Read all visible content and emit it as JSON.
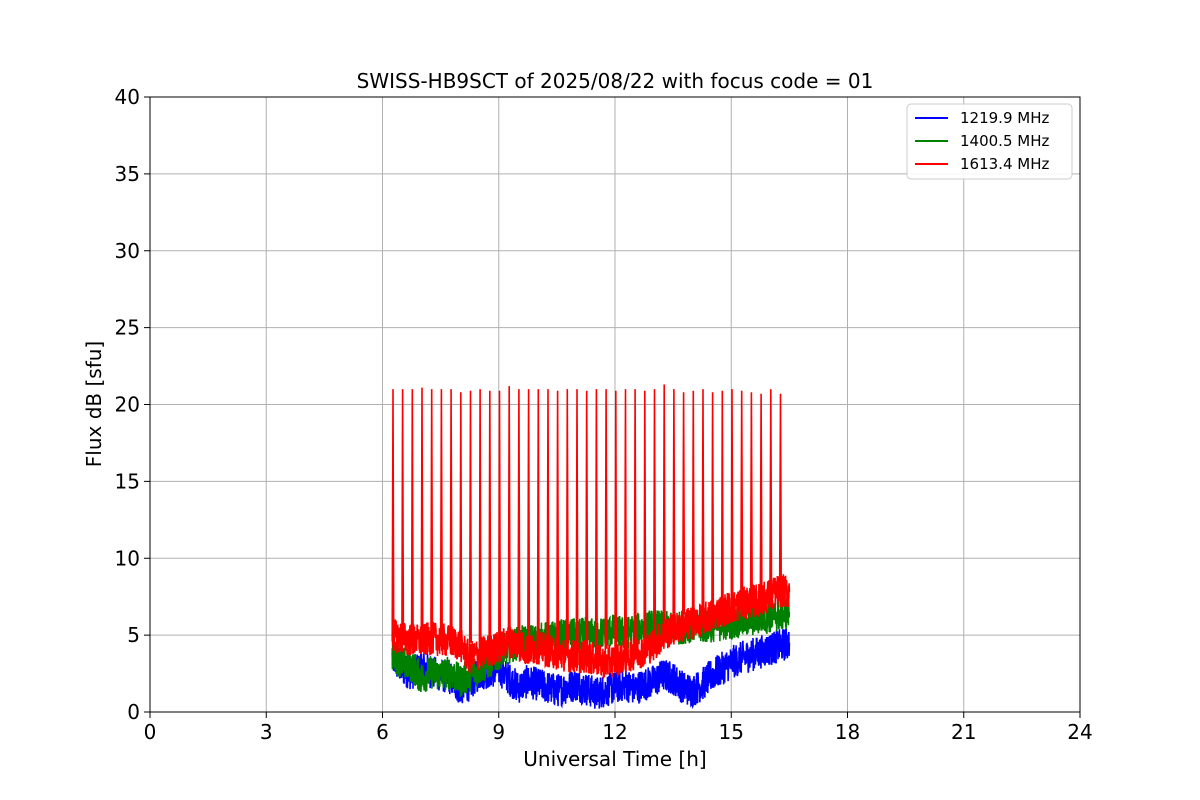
{
  "chart_data": {
    "type": "line",
    "title": "SWISS-HB9SCT of 2025/08/22 with focus code = 01",
    "xlabel": "Universal Time [h]",
    "ylabel": "Flux dB [sfu]",
    "xlim": [
      0,
      24
    ],
    "ylim": [
      0,
      40
    ],
    "x_ticks": [
      0,
      3,
      6,
      9,
      12,
      15,
      18,
      21,
      24
    ],
    "y_ticks": [
      0,
      5,
      10,
      15,
      20,
      25,
      30,
      35,
      40
    ],
    "x_tick_labels": [
      "0",
      "3",
      "6",
      "9",
      "12",
      "15",
      "18",
      "21",
      "24"
    ],
    "y_tick_labels": [
      "0",
      "5",
      "10",
      "15",
      "20",
      "25",
      "30",
      "35",
      "40"
    ],
    "grid": true,
    "legend_position": "top-right",
    "series": [
      {
        "name": "1219.9 MHz",
        "color": "#0000ff",
        "x": [
          6.25,
          6.5,
          6.75,
          7.0,
          7.25,
          7.5,
          7.75,
          8.0,
          8.25,
          8.5,
          8.75,
          9.0,
          9.25,
          9.5,
          9.75,
          10.0,
          10.25,
          10.5,
          10.75,
          11.0,
          11.25,
          11.5,
          11.75,
          12.0,
          12.25,
          12.5,
          12.75,
          13.0,
          13.25,
          13.5,
          13.75,
          14.0,
          14.25,
          14.5,
          14.75,
          15.0,
          15.25,
          15.5,
          15.75,
          16.0,
          16.25,
          16.5
        ],
        "y": [
          3.5,
          2.8,
          2.5,
          3.0,
          2.6,
          2.4,
          2.2,
          1.5,
          1.8,
          2.5,
          2.6,
          2.8,
          2.2,
          1.6,
          2.0,
          1.8,
          1.6,
          1.4,
          1.6,
          1.8,
          1.5,
          1.2,
          1.4,
          1.6,
          1.8,
          1.5,
          1.8,
          2.0,
          2.4,
          2.2,
          1.6,
          1.4,
          1.8,
          2.4,
          2.8,
          3.2,
          3.5,
          3.7,
          3.9,
          4.1,
          4.3,
          4.5
        ]
      },
      {
        "name": "1400.5 MHz",
        "color": "#008000",
        "x": [
          6.25,
          6.5,
          6.75,
          7.0,
          7.25,
          7.5,
          7.75,
          8.0,
          8.25,
          8.5,
          8.75,
          9.0,
          9.25,
          9.5,
          9.75,
          10.0,
          10.25,
          10.5,
          10.75,
          11.0,
          11.25,
          11.5,
          11.75,
          12.0,
          12.25,
          12.5,
          12.75,
          13.0,
          13.25,
          13.5,
          13.75,
          14.0,
          14.25,
          14.5,
          14.75,
          15.0,
          15.25,
          15.5,
          15.75,
          16.0,
          16.25,
          16.5
        ],
        "y": [
          3.8,
          3.2,
          3.0,
          2.2,
          2.6,
          2.4,
          2.6,
          2.0,
          2.4,
          2.8,
          3.2,
          3.8,
          4.2,
          4.5,
          4.6,
          4.7,
          4.8,
          4.9,
          5.0,
          5.0,
          5.1,
          5.0,
          5.2,
          5.3,
          5.1,
          5.3,
          5.5,
          5.6,
          5.5,
          5.4,
          5.5,
          5.6,
          5.5,
          5.6,
          5.7,
          5.8,
          5.9,
          6.0,
          6.1,
          6.2,
          6.3,
          6.5
        ]
      },
      {
        "name": "1613.4 MHz",
        "color": "#ff0000",
        "x": [
          6.25,
          6.5,
          6.75,
          7.0,
          7.25,
          7.5,
          7.75,
          8.0,
          8.25,
          8.5,
          8.75,
          9.0,
          9.25,
          9.5,
          9.75,
          10.0,
          10.25,
          10.5,
          10.75,
          11.0,
          11.25,
          11.5,
          11.75,
          12.0,
          12.25,
          12.5,
          12.75,
          13.0,
          13.25,
          13.5,
          13.75,
          14.0,
          14.25,
          14.5,
          14.75,
          15.0,
          15.25,
          15.5,
          15.75,
          16.0,
          16.25,
          16.5
        ],
        "y": [
          5.0,
          4.8,
          4.7,
          4.6,
          4.8,
          4.7,
          4.6,
          4.4,
          3.5,
          3.8,
          4.0,
          4.2,
          4.6,
          4.4,
          4.0,
          4.2,
          4.0,
          3.8,
          3.7,
          3.6,
          3.6,
          3.4,
          3.2,
          3.4,
          3.6,
          3.8,
          4.0,
          4.4,
          5.0,
          5.4,
          5.6,
          5.8,
          6.0,
          6.3,
          6.6,
          6.8,
          7.0,
          7.2,
          7.3,
          7.6,
          7.9,
          7.8
        ]
      }
    ],
    "spikes": {
      "series": "1613.4 MHz",
      "x": [
        6.25,
        6.5,
        6.75,
        7.0,
        7.25,
        7.5,
        7.75,
        8.0,
        8.25,
        8.5,
        8.75,
        9.0,
        9.25,
        9.5,
        9.75,
        10.0,
        10.25,
        10.5,
        10.75,
        11.0,
        11.25,
        11.5,
        11.75,
        12.0,
        12.25,
        12.5,
        12.75,
        13.0,
        13.25,
        13.5,
        13.75,
        14.0,
        14.25,
        14.5,
        14.75,
        15.0,
        15.25,
        15.5,
        15.75,
        16.0,
        16.25
      ],
      "y": [
        21.0,
        21.0,
        21.0,
        21.1,
        21.0,
        21.0,
        21.0,
        20.8,
        20.9,
        21.0,
        20.9,
        20.9,
        21.2,
        21.0,
        21.0,
        21.0,
        21.0,
        20.9,
        21.0,
        21.0,
        20.9,
        21.0,
        21.0,
        20.9,
        21.0,
        21.0,
        20.9,
        21.0,
        21.3,
        21.0,
        20.8,
        20.9,
        21.0,
        20.8,
        20.9,
        21.0,
        20.9,
        20.8,
        20.7,
        21.0,
        20.7
      ]
    }
  }
}
